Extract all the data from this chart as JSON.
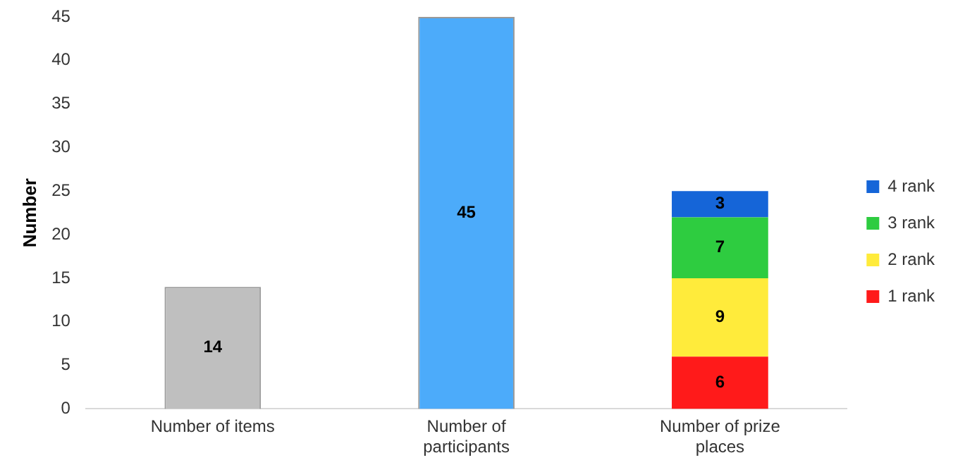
{
  "chart_data": {
    "type": "bar",
    "ylabel": "Number",
    "categories": [
      "Number of items",
      "Number of participants",
      "Number of prize places"
    ],
    "series": [
      {
        "colors": [
          "#bfbfbf",
          "#4cabfa",
          null
        ],
        "values": [
          14,
          45,
          null
        ]
      },
      {
        "name": "1 rank",
        "color": "#ff1a1a",
        "values": [
          null,
          null,
          6
        ]
      },
      {
        "name": "2 rank",
        "color": "#ffeb3b",
        "values": [
          null,
          null,
          9
        ]
      },
      {
        "name": "3 rank",
        "color": "#2ecc40",
        "values": [
          null,
          null,
          7
        ]
      },
      {
        "name": "4 rank",
        "color": "#1565d8",
        "values": [
          null,
          null,
          3
        ]
      }
    ],
    "stacked": true,
    "ylim": [
      0,
      45
    ],
    "yticks": [
      0,
      5,
      10,
      15,
      20,
      25,
      30,
      35,
      40,
      45
    ],
    "grid": false,
    "legend": "right",
    "data_labels": true
  }
}
